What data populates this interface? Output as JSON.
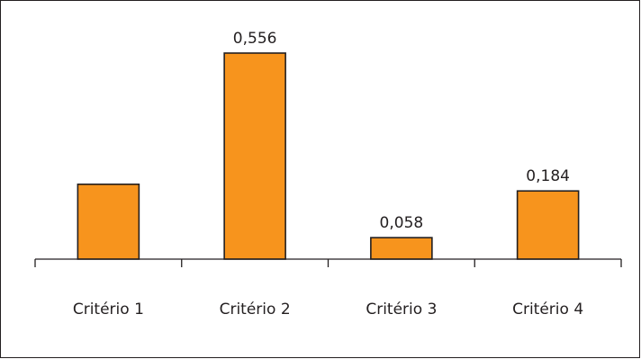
{
  "chart_data": {
    "type": "bar",
    "categories": [
      "Critério 1",
      "Critério 2",
      "Critério 3",
      "Critério 4"
    ],
    "values": [
      0.202,
      0.556,
      0.058,
      0.184
    ],
    "data_labels": [
      "",
      "0,556",
      "0,058",
      "0,184"
    ],
    "title": "",
    "xlabel": "",
    "ylabel": "",
    "ylim": [
      0,
      0.6
    ],
    "grid": false,
    "legend": "none",
    "colors": {
      "bar_fill": "#f7941d",
      "bar_stroke": "#231f20",
      "axis": "#231f20"
    }
  }
}
